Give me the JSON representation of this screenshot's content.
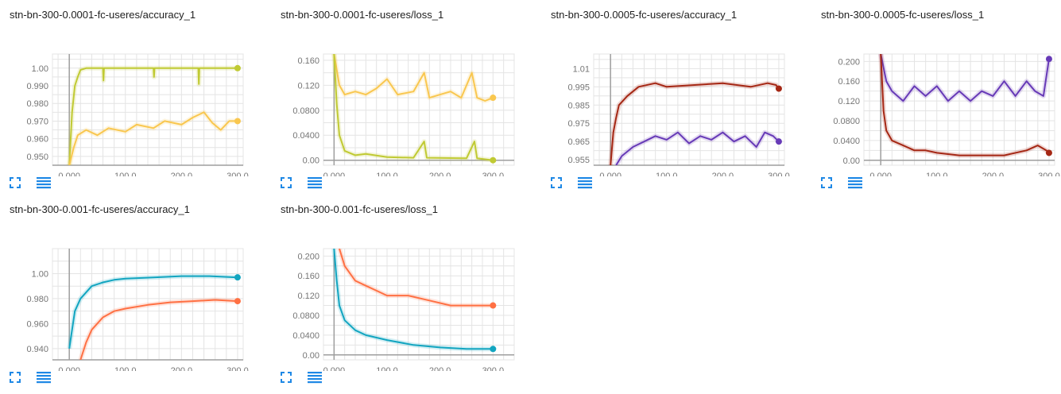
{
  "theme": {
    "grid": "#e4e4e4",
    "axis": "#9e9e9e",
    "tick_text": "#757575",
    "tool_color": "#1e88e5"
  },
  "toolbar": {
    "fit_icon": "fit-domain-icon",
    "data_icon": "data-table-icon"
  },
  "chart_data": [
    {
      "title": "stn-bn-300-0.0001-fc-useres/accuracy_1",
      "type": "line",
      "xlim": [
        -30,
        310
      ],
      "ylim": [
        0.945,
        1.008
      ],
      "xticks": [
        "0.000",
        "100.0",
        "200.0",
        "300.0"
      ],
      "xtick_values": [
        0,
        100,
        200,
        300
      ],
      "yticks": [
        "0.950",
        "0.960",
        "0.970",
        "0.980",
        "0.990",
        "1.00"
      ],
      "ytick_values": [
        0.95,
        0.96,
        0.97,
        0.98,
        0.99,
        1.0
      ],
      "series": [
        {
          "color": "#c0ca33",
          "points": [
            [
              0,
              0.945
            ],
            [
              5,
              0.975
            ],
            [
              10,
              0.99
            ],
            [
              15,
              0.995
            ],
            [
              20,
              0.999
            ],
            [
              30,
              1.0
            ],
            [
              60,
              1.0
            ],
            [
              61,
              0.993
            ],
            [
              62,
              1.0
            ],
            [
              150,
              1.0
            ],
            [
              151,
              0.995
            ],
            [
              152,
              1.0
            ],
            [
              230,
              1.0
            ],
            [
              231,
              0.991
            ],
            [
              232,
              1.0
            ],
            [
              300,
              1.0
            ]
          ]
        },
        {
          "color": "#f9c74f",
          "points": [
            [
              0,
              0.945
            ],
            [
              8,
              0.955
            ],
            [
              15,
              0.962
            ],
            [
              30,
              0.965
            ],
            [
              50,
              0.962
            ],
            [
              70,
              0.966
            ],
            [
              100,
              0.964
            ],
            [
              120,
              0.968
            ],
            [
              150,
              0.966
            ],
            [
              170,
              0.97
            ],
            [
              200,
              0.968
            ],
            [
              220,
              0.972
            ],
            [
              240,
              0.975
            ],
            [
              255,
              0.969
            ],
            [
              270,
              0.965
            ],
            [
              285,
              0.97
            ],
            [
              300,
              0.97
            ]
          ]
        }
      ]
    },
    {
      "title": "stn-bn-300-0.0001-fc-useres/loss_1",
      "type": "line",
      "xlim": [
        -20,
        340
      ],
      "ylim": [
        -0.008,
        0.17
      ],
      "xticks": [
        "0.000",
        "100.0",
        "200.0",
        "300.0"
      ],
      "xtick_values": [
        0,
        100,
        200,
        300
      ],
      "yticks": [
        "0.00",
        "0.0400",
        "0.0800",
        "0.120",
        "0.160"
      ],
      "ytick_values": [
        0.0,
        0.04,
        0.08,
        0.12,
        0.16
      ],
      "series": [
        {
          "color": "#f9c74f",
          "points": [
            [
              0,
              0.17
            ],
            [
              10,
              0.12
            ],
            [
              20,
              0.105
            ],
            [
              40,
              0.11
            ],
            [
              60,
              0.105
            ],
            [
              80,
              0.115
            ],
            [
              100,
              0.13
            ],
            [
              120,
              0.105
            ],
            [
              150,
              0.11
            ],
            [
              170,
              0.14
            ],
            [
              180,
              0.1
            ],
            [
              200,
              0.105
            ],
            [
              220,
              0.11
            ],
            [
              240,
              0.1
            ],
            [
              260,
              0.14
            ],
            [
              270,
              0.1
            ],
            [
              285,
              0.095
            ],
            [
              300,
              0.1
            ]
          ]
        },
        {
          "color": "#c0ca33",
          "points": [
            [
              0,
              0.17
            ],
            [
              5,
              0.09
            ],
            [
              10,
              0.04
            ],
            [
              20,
              0.015
            ],
            [
              40,
              0.008
            ],
            [
              60,
              0.01
            ],
            [
              100,
              0.005
            ],
            [
              150,
              0.004
            ],
            [
              170,
              0.03
            ],
            [
              175,
              0.004
            ],
            [
              250,
              0.003
            ],
            [
              265,
              0.03
            ],
            [
              270,
              0.003
            ],
            [
              300,
              0.0
            ]
          ]
        }
      ]
    },
    {
      "title": "stn-bn-300-0.0005-fc-useres/accuracy_1",
      "type": "line",
      "xlim": [
        -30,
        310
      ],
      "ylim": [
        0.952,
        1.013
      ],
      "xticks": [
        "0.000",
        "100.0",
        "200.0",
        "300.0"
      ],
      "xtick_values": [
        0,
        100,
        200,
        300
      ],
      "yticks": [
        "0.955",
        "0.965",
        "0.975",
        "0.985",
        "0.995",
        "1.01"
      ],
      "ytick_values": [
        0.955,
        0.965,
        0.975,
        0.985,
        0.995,
        1.005
      ],
      "series": [
        {
          "color": "#a52714",
          "points": [
            [
              0,
              0.952
            ],
            [
              5,
              0.97
            ],
            [
              10,
              0.978
            ],
            [
              15,
              0.985
            ],
            [
              30,
              0.99
            ],
            [
              50,
              0.995
            ],
            [
              80,
              0.997
            ],
            [
              100,
              0.995
            ],
            [
              150,
              0.996
            ],
            [
              200,
              0.997
            ],
            [
              250,
              0.995
            ],
            [
              280,
              0.997
            ],
            [
              295,
              0.996
            ],
            [
              300,
              0.994
            ]
          ]
        },
        {
          "color": "#673ab7",
          "points": [
            [
              10,
              0.952
            ],
            [
              20,
              0.957
            ],
            [
              40,
              0.962
            ],
            [
              60,
              0.965
            ],
            [
              80,
              0.968
            ],
            [
              100,
              0.966
            ],
            [
              120,
              0.97
            ],
            [
              140,
              0.964
            ],
            [
              160,
              0.968
            ],
            [
              180,
              0.966
            ],
            [
              200,
              0.97
            ],
            [
              220,
              0.965
            ],
            [
              240,
              0.968
            ],
            [
              260,
              0.962
            ],
            [
              275,
              0.97
            ],
            [
              290,
              0.968
            ],
            [
              300,
              0.965
            ]
          ]
        }
      ]
    },
    {
      "title": "stn-bn-300-0.0005-fc-useres/loss_1",
      "type": "line",
      "xlim": [
        -30,
        310
      ],
      "ylim": [
        -0.01,
        0.215
      ],
      "xticks": [
        "0.000",
        "100.0",
        "200.0",
        "300.0"
      ],
      "xtick_values": [
        0,
        100,
        200,
        300
      ],
      "yticks": [
        "0.00",
        "0.0400",
        "0.0800",
        "0.120",
        "0.160",
        "0.200"
      ],
      "ytick_values": [
        0.0,
        0.04,
        0.08,
        0.12,
        0.16,
        0.2
      ],
      "series": [
        {
          "color": "#673ab7",
          "points": [
            [
              0,
              0.215
            ],
            [
              10,
              0.16
            ],
            [
              20,
              0.14
            ],
            [
              40,
              0.12
            ],
            [
              60,
              0.15
            ],
            [
              80,
              0.13
            ],
            [
              100,
              0.15
            ],
            [
              120,
              0.12
            ],
            [
              140,
              0.14
            ],
            [
              160,
              0.12
            ],
            [
              180,
              0.14
            ],
            [
              200,
              0.13
            ],
            [
              220,
              0.16
            ],
            [
              240,
              0.13
            ],
            [
              260,
              0.16
            ],
            [
              275,
              0.14
            ],
            [
              290,
              0.13
            ],
            [
              300,
              0.205
            ]
          ]
        },
        {
          "color": "#a52714",
          "points": [
            [
              0,
              0.215
            ],
            [
              5,
              0.1
            ],
            [
              10,
              0.06
            ],
            [
              20,
              0.04
            ],
            [
              40,
              0.03
            ],
            [
              60,
              0.02
            ],
            [
              80,
              0.02
            ],
            [
              100,
              0.015
            ],
            [
              140,
              0.01
            ],
            [
              180,
              0.01
            ],
            [
              220,
              0.01
            ],
            [
              260,
              0.02
            ],
            [
              280,
              0.03
            ],
            [
              295,
              0.02
            ],
            [
              300,
              0.015
            ]
          ]
        }
      ]
    },
    {
      "title": "stn-bn-300-0.001-fc-useres/accuracy_1",
      "type": "line",
      "xlim": [
        -30,
        310
      ],
      "ylim": [
        0.931,
        1.02
      ],
      "xticks": [
        "0.000",
        "100.0",
        "200.0",
        "300.0"
      ],
      "xtick_values": [
        0,
        100,
        200,
        300
      ],
      "yticks": [
        "0.940",
        "0.960",
        "0.980",
        "1.00"
      ],
      "ytick_values": [
        0.94,
        0.96,
        0.98,
        1.0
      ],
      "series": [
        {
          "color": "#12a5c0",
          "points": [
            [
              0,
              0.94
            ],
            [
              5,
              0.955
            ],
            [
              10,
              0.97
            ],
            [
              20,
              0.98
            ],
            [
              40,
              0.99
            ],
            [
              60,
              0.993
            ],
            [
              80,
              0.995
            ],
            [
              100,
              0.996
            ],
            [
              150,
              0.997
            ],
            [
              200,
              0.998
            ],
            [
              250,
              0.998
            ],
            [
              300,
              0.997
            ]
          ]
        },
        {
          "color": "#ff7043",
          "points": [
            [
              20,
              0.931
            ],
            [
              30,
              0.945
            ],
            [
              40,
              0.955
            ],
            [
              60,
              0.965
            ],
            [
              80,
              0.97
            ],
            [
              100,
              0.972
            ],
            [
              140,
              0.975
            ],
            [
              180,
              0.977
            ],
            [
              220,
              0.978
            ],
            [
              260,
              0.979
            ],
            [
              300,
              0.978
            ]
          ]
        }
      ]
    },
    {
      "title": "stn-bn-300-0.001-fc-useres/loss_1",
      "type": "line",
      "xlim": [
        -20,
        340
      ],
      "ylim": [
        -0.01,
        0.215
      ],
      "xticks": [
        "0.000",
        "100.0",
        "200.0",
        "300.0"
      ],
      "xtick_values": [
        0,
        100,
        200,
        300
      ],
      "yticks": [
        "0.00",
        "0.0400",
        "0.0800",
        "0.120",
        "0.160",
        "0.200"
      ],
      "ytick_values": [
        0.0,
        0.04,
        0.08,
        0.12,
        0.16,
        0.2
      ],
      "series": [
        {
          "color": "#ff7043",
          "points": [
            [
              10,
              0.215
            ],
            [
              20,
              0.18
            ],
            [
              40,
              0.15
            ],
            [
              60,
              0.14
            ],
            [
              80,
              0.13
            ],
            [
              100,
              0.12
            ],
            [
              140,
              0.12
            ],
            [
              180,
              0.11
            ],
            [
              220,
              0.1
            ],
            [
              260,
              0.1
            ],
            [
              300,
              0.1
            ]
          ]
        },
        {
          "color": "#12a5c0",
          "points": [
            [
              0,
              0.215
            ],
            [
              5,
              0.15
            ],
            [
              10,
              0.1
            ],
            [
              20,
              0.07
            ],
            [
              40,
              0.05
            ],
            [
              60,
              0.04
            ],
            [
              80,
              0.035
            ],
            [
              100,
              0.03
            ],
            [
              150,
              0.02
            ],
            [
              200,
              0.015
            ],
            [
              250,
              0.012
            ],
            [
              300,
              0.012
            ]
          ]
        }
      ]
    }
  ]
}
